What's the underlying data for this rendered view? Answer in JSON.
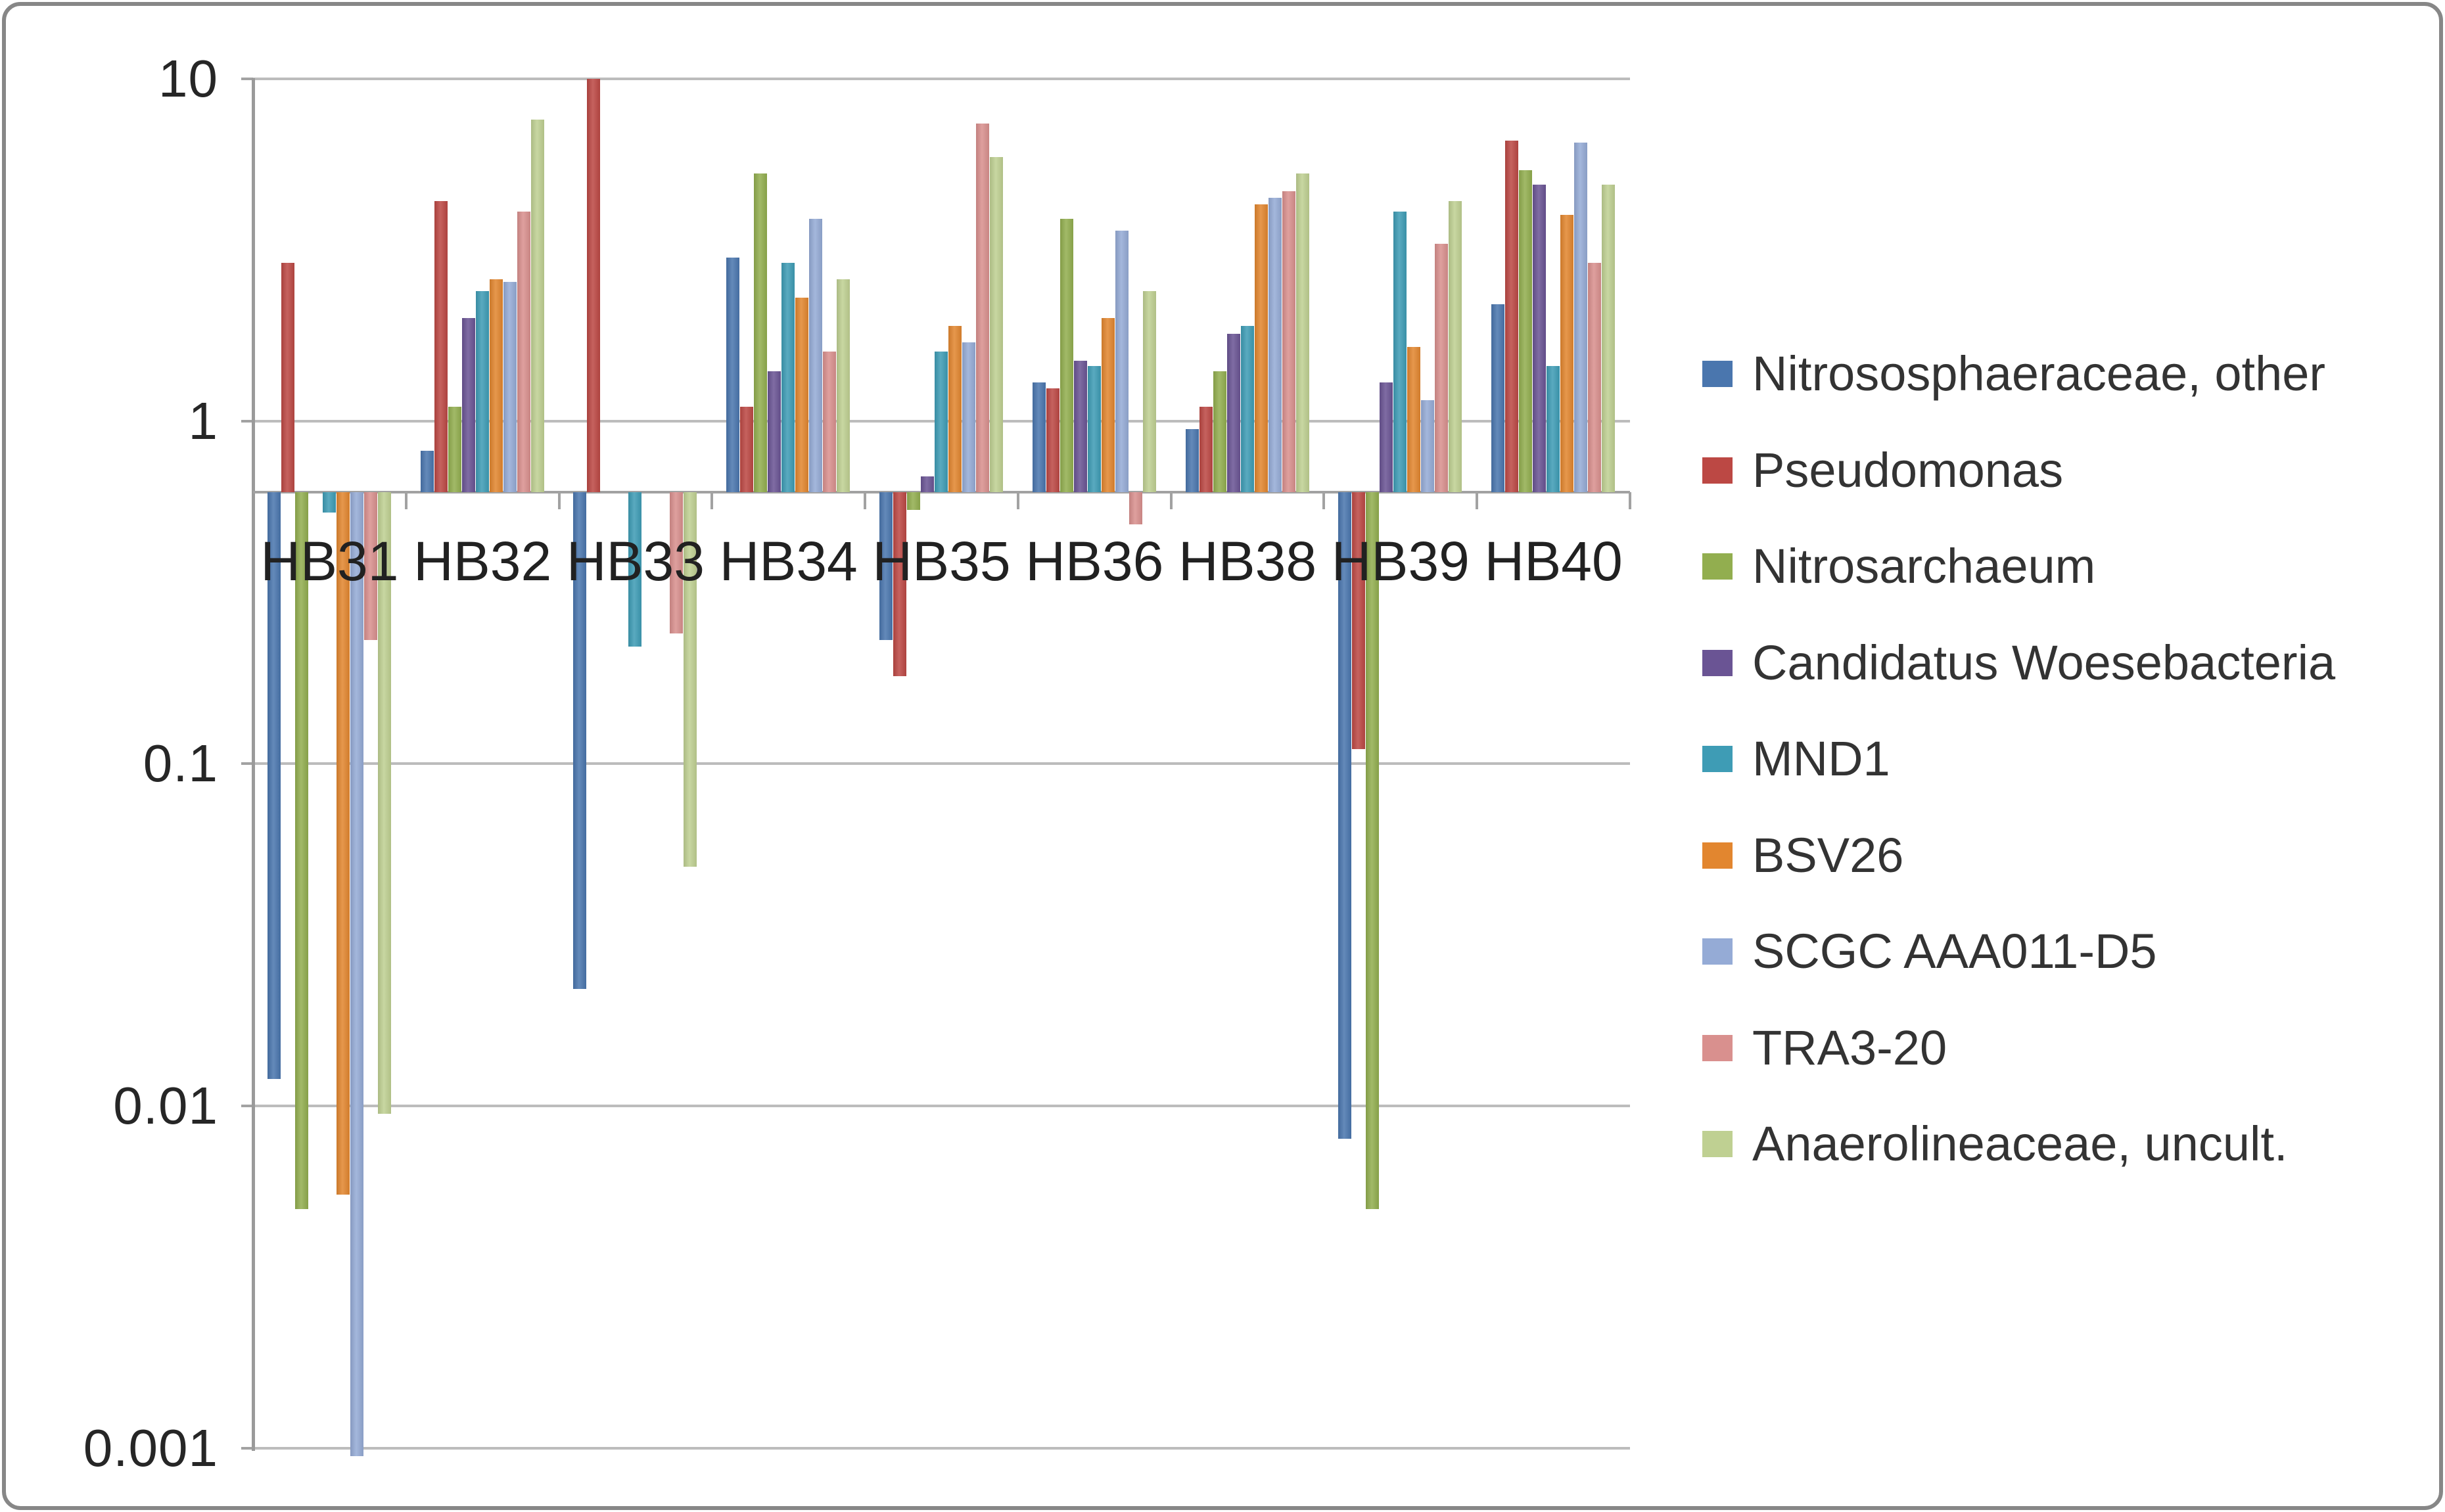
{
  "chart_data": {
    "type": "bar",
    "title": "",
    "y_scale": "log",
    "ylim": [
      0.001,
      10
    ],
    "axis_crossing": 0.62,
    "grid": true,
    "legend_position": "right",
    "y_tick_labels": [
      "10",
      "1",
      "0.1",
      "0.01",
      "0.001"
    ],
    "y_tick_values": [
      10,
      1,
      0.1,
      0.01,
      0.001
    ],
    "categories": [
      "HB31",
      "HB32",
      "HB33",
      "HB34",
      "HB35",
      "HB36",
      "HB38",
      "HB39",
      "HB40"
    ],
    "series": [
      {
        "name": "Nitrososphaeraceae, other",
        "color": "#4A76AE",
        "values": [
          0.012,
          0.82,
          0.022,
          3.0,
          0.23,
          1.3,
          0.95,
          0.008,
          2.2
        ]
      },
      {
        "name": "Pseudomonas",
        "color": "#BC4844",
        "values": [
          2.9,
          4.4,
          10,
          1.1,
          0.18,
          1.25,
          1.1,
          0.11,
          6.6
        ]
      },
      {
        "name": "Nitrosarchaeum",
        "color": "#92AE4F",
        "values": [
          0.005,
          1.1,
          null,
          5.3,
          0.55,
          3.9,
          1.4,
          0.005,
          5.4
        ]
      },
      {
        "name": "Candidatus Woesebacteria",
        "color": "#6A5494",
        "values": [
          null,
          2.0,
          null,
          1.4,
          0.69,
          1.5,
          1.8,
          1.3,
          4.9
        ]
      },
      {
        "name": "MND1",
        "color": "#3E9CB5",
        "values": [
          0.54,
          2.4,
          0.22,
          2.9,
          1.6,
          1.45,
          1.9,
          4.1,
          1.45
        ]
      },
      {
        "name": "BSV26",
        "color": "#E2862F",
        "values": [
          0.0055,
          2.6,
          null,
          2.3,
          1.9,
          2.0,
          4.3,
          1.65,
          4.0
        ]
      },
      {
        "name": "SCGC AAA011-D5",
        "color": "#95ABD6",
        "values": [
          0.00095,
          2.55,
          null,
          3.9,
          1.7,
          3.6,
          4.5,
          1.15,
          6.5
        ]
      },
      {
        "name": "TRA3-20",
        "color": "#D9908E",
        "values": [
          0.23,
          4.1,
          0.24,
          1.6,
          7.4,
          0.5,
          4.7,
          3.3,
          2.9
        ]
      },
      {
        "name": "Anaerolineaceae, uncult.",
        "color": "#BFD092",
        "values": [
          0.0095,
          7.6,
          0.05,
          2.6,
          5.9,
          2.4,
          5.3,
          4.4,
          4.9
        ]
      }
    ]
  }
}
